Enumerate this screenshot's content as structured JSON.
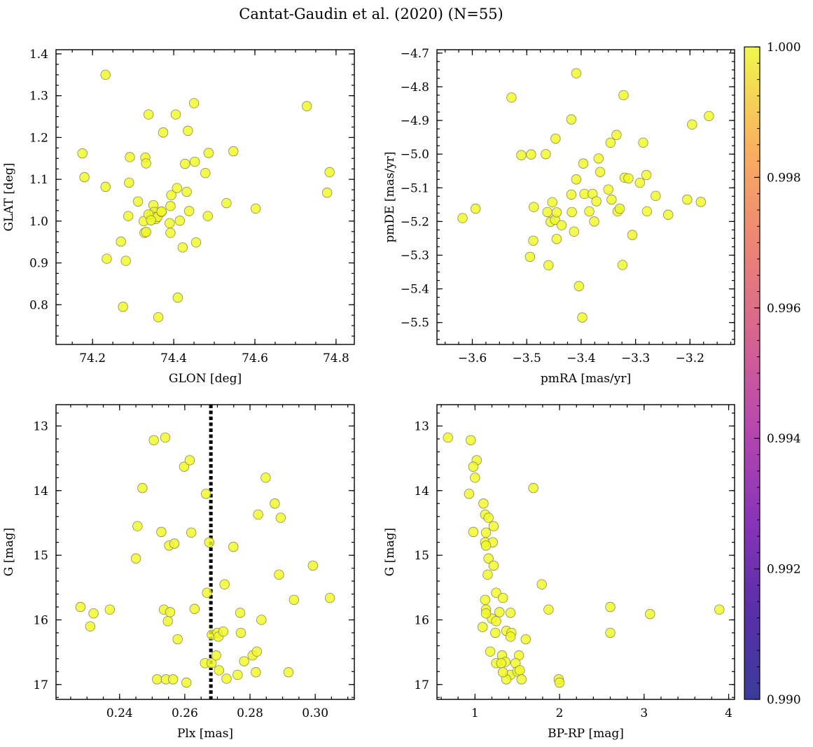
{
  "figure": {
    "title": "Cantat-Gaudin et al. (2020) (N=55)"
  },
  "colors": {
    "marker_fill": "#f0f921",
    "marker_edge": "#8a8a5a",
    "vline": "#000000",
    "colormap": "plasma"
  },
  "colorbar": {
    "range": [
      0.99,
      1.0
    ],
    "ticks": [
      "0.990",
      "0.992",
      "0.994",
      "0.996",
      "0.998",
      "1.000"
    ],
    "tick_values": [
      0.99,
      0.992,
      0.994,
      0.996,
      0.998,
      1.0
    ]
  },
  "chart_data": [
    {
      "type": "scatter",
      "xlabel": "GLON [deg]",
      "ylabel": "GLAT [deg]",
      "xlim": [
        74.11,
        74.845
      ],
      "ylim": [
        0.705,
        1.41
      ],
      "invert_y": false,
      "xticks": [
        74.2,
        74.4,
        74.6,
        74.8
      ],
      "xticklabels": [
        "74.2",
        "74.4",
        "74.6",
        "74.8"
      ],
      "yticks": [
        0.8,
        0.9,
        1.0,
        1.1,
        1.2,
        1.3,
        1.4
      ],
      "yticklabels": [
        "0.8",
        "0.9",
        "1.0",
        "1.1",
        "1.2",
        "1.3",
        "1.4"
      ],
      "x": [
        74.232,
        74.175,
        74.18,
        74.232,
        74.235,
        74.275,
        74.282,
        74.288,
        74.29,
        74.292,
        74.312,
        74.33,
        74.332,
        74.326,
        74.328,
        74.338,
        74.345,
        74.35,
        74.352,
        74.354,
        74.356,
        74.36,
        74.37,
        74.374,
        74.392,
        74.394,
        74.392,
        74.39,
        74.405,
        74.41,
        74.415,
        74.422,
        74.428,
        74.432,
        74.435,
        74.438,
        74.45,
        74.452,
        74.455,
        74.478,
        74.484,
        74.486,
        74.53,
        74.547,
        74.602,
        74.728,
        74.778,
        74.784,
        74.27,
        74.408,
        74.362,
        74.338,
        74.332,
        74.344,
        74.37
      ],
      "y": [
        1.35,
        1.162,
        1.105,
        1.082,
        0.91,
        0.795,
        0.905,
        1.012,
        1.092,
        1.153,
        1.047,
        1.152,
        1.138,
        1.0,
        0.972,
        1.255,
        1.015,
        1.038,
        1.022,
        1.01,
        1.005,
        1.01,
        1.022,
        1.212,
        1.036,
        1.062,
        0.972,
        0.995,
        1.255,
        0.817,
        1.001,
        0.937,
        1.137,
        1.07,
        1.216,
        1.024,
        1.282,
        1.142,
        0.949,
        1.115,
        1.012,
        1.163,
        1.043,
        1.167,
        1.03,
        1.275,
        1.068,
        1.117,
        0.951,
        1.079,
        0.77,
        1.016,
        0.974,
        1.002,
        1.023
      ]
    },
    {
      "type": "scatter",
      "xlabel": "pmRA [mas/yr]",
      "ylabel": "pmDE [mas/yr]",
      "xlim": [
        -3.665,
        -3.118
      ],
      "ylim": [
        -5.565,
        -4.69
      ],
      "invert_y": false,
      "xticks": [
        -3.6,
        -3.5,
        -3.4,
        -3.3,
        -3.2
      ],
      "xticklabels": [
        "−3.6",
        "−3.5",
        "−3.4",
        "−3.3",
        "−3.2"
      ],
      "yticks": [
        -5.5,
        -5.4,
        -5.3,
        -5.2,
        -5.1,
        -5.0,
        -4.9,
        -4.8,
        -4.7
      ],
      "yticklabels": [
        "−5.5",
        "−5.4",
        "−5.3",
        "−5.2",
        "−5.1",
        "−5.0",
        "−4.9",
        "−4.8",
        "−4.7"
      ],
      "x": [
        -3.618,
        -3.594,
        -3.528,
        -3.51,
        -3.494,
        -3.492,
        -3.488,
        -3.487,
        -3.465,
        -3.462,
        -3.46,
        -3.456,
        -3.453,
        -3.448,
        -3.447,
        -3.445,
        -3.445,
        -3.436,
        -3.418,
        -3.418,
        -3.417,
        -3.413,
        -3.409,
        -3.409,
        -3.404,
        -3.398,
        -3.396,
        -3.394,
        -3.385,
        -3.379,
        -3.376,
        -3.372,
        -3.368,
        -3.365,
        -3.35,
        -3.346,
        -3.344,
        -3.335,
        -3.333,
        -3.329,
        -3.324,
        -3.322,
        -3.32,
        -3.313,
        -3.306,
        -3.292,
        -3.286,
        -3.28,
        -3.279,
        -3.263,
        -3.24,
        -3.205,
        -3.196,
        -3.18,
        -3.165
      ],
      "y": [
        -5.19,
        -5.162,
        -4.832,
        -5.003,
        -5.305,
        -5.001,
        -5.257,
        -5.157,
        -5.0,
        -5.172,
        -5.33,
        -5.201,
        -5.143,
        -5.195,
        -4.954,
        -5.173,
        -5.252,
        -5.211,
        -4.897,
        -5.12,
        -5.172,
        -5.23,
        -4.76,
        -5.075,
        -5.392,
        -5.485,
        -5.028,
        -5.118,
        -5.17,
        -5.118,
        -5.2,
        -5.14,
        -5.013,
        -5.053,
        -5.105,
        -4.966,
        -5.135,
        -4.943,
        -5.17,
        -5.162,
        -5.329,
        -4.825,
        -5.07,
        -5.072,
        -5.24,
        -5.085,
        -4.966,
        -5.062,
        -5.17,
        -5.124,
        -5.18,
        -5.135,
        -4.912,
        -5.142,
        -4.887
      ]
    },
    {
      "type": "scatter",
      "xlabel": "Plx [mas]",
      "ylabel": "G [mag]",
      "xlim": [
        0.2205,
        0.312
      ],
      "ylim": [
        17.23,
        12.67
      ],
      "invert_y": true,
      "vline": {
        "x": 0.268,
        "style": "dotted"
      },
      "xticks": [
        0.24,
        0.26,
        0.28,
        0.3
      ],
      "xticklabels": [
        "0.24",
        "0.26",
        "0.28",
        "0.30"
      ],
      "yticks": [
        13,
        14,
        15,
        16,
        17
      ],
      "yticklabels": [
        "13",
        "14",
        "15",
        "16",
        "17"
      ],
      "x": [
        0.228,
        0.231,
        0.232,
        0.237,
        0.245,
        0.2455,
        0.247,
        0.2505,
        0.2515,
        0.2528,
        0.2536,
        0.254,
        0.2542,
        0.2548,
        0.2552,
        0.2555,
        0.2564,
        0.2568,
        0.2578,
        0.2598,
        0.2605,
        0.2615,
        0.262,
        0.263,
        0.2662,
        0.2665,
        0.2668,
        0.2675,
        0.2682,
        0.2683,
        0.2696,
        0.27,
        0.2703,
        0.2705,
        0.2718,
        0.2722,
        0.2728,
        0.2749,
        0.2762,
        0.277,
        0.2772,
        0.2782,
        0.2808,
        0.2818,
        0.2821,
        0.2825,
        0.2835,
        0.2848,
        0.2876,
        0.2889,
        0.2894,
        0.2918,
        0.2935,
        0.2993,
        0.3045
      ],
      "y": [
        15.8,
        16.1,
        15.9,
        15.84,
        15.05,
        14.55,
        13.96,
        13.22,
        16.92,
        14.64,
        15.84,
        13.18,
        16.92,
        16.02,
        14.85,
        15.88,
        16.92,
        14.82,
        16.3,
        13.63,
        16.97,
        13.53,
        14.65,
        15.83,
        16.67,
        14.05,
        15.58,
        14.8,
        16.67,
        16.23,
        16.55,
        16.2,
        16.26,
        16.78,
        16.18,
        15.45,
        16.91,
        14.87,
        16.85,
        15.89,
        16.2,
        16.64,
        16.55,
        16.81,
        16.49,
        14.37,
        16.0,
        13.8,
        14.2,
        15.3,
        14.42,
        16.81,
        15.69,
        15.16,
        15.66
      ]
    },
    {
      "type": "scatter",
      "xlabel": "BP-RP [mag]",
      "ylabel": "G [mag]",
      "xlim": [
        0.55,
        4.07
      ],
      "ylim": [
        17.23,
        12.67
      ],
      "invert_y": true,
      "xticks": [
        1,
        2,
        3,
        4
      ],
      "xticklabels": [
        "1",
        "2",
        "3",
        "4"
      ],
      "yticks": [
        13,
        14,
        15,
        16,
        17
      ],
      "yticklabels": [
        "13",
        "14",
        "15",
        "16",
        "17"
      ],
      "x": [
        0.68,
        0.95,
        1.02,
        0.98,
        1.0,
        0.93,
        1.1,
        1.12,
        1.16,
        1.22,
        0.98,
        1.13,
        1.12,
        1.21,
        1.13,
        1.16,
        1.22,
        1.15,
        1.12,
        1.13,
        1.2,
        1.25,
        1.25,
        1.29,
        1.33,
        1.37,
        1.43,
        1.09,
        1.18,
        1.24,
        1.32,
        1.36,
        1.42,
        1.52,
        1.25,
        1.31,
        1.37,
        1.48,
        1.5,
        1.33,
        1.53,
        1.55,
        1.42,
        1.6,
        1.99,
        2.0,
        1.69,
        1.79,
        1.87,
        2.6,
        2.6,
        3.07,
        3.89,
        1.42,
        1.13
      ],
      "y": [
        13.18,
        13.22,
        13.53,
        13.63,
        13.8,
        14.05,
        14.2,
        14.37,
        14.42,
        14.55,
        14.64,
        14.65,
        14.8,
        14.8,
        14.85,
        15.05,
        15.16,
        15.3,
        15.69,
        15.84,
        15.98,
        15.58,
        16.02,
        15.88,
        15.66,
        16.17,
        16.2,
        16.11,
        16.49,
        16.2,
        16.55,
        16.65,
        16.85,
        16.55,
        16.67,
        16.67,
        16.92,
        16.67,
        16.8,
        16.81,
        16.78,
        16.92,
        16.26,
        16.3,
        16.92,
        16.97,
        13.96,
        15.45,
        15.84,
        15.8,
        16.2,
        15.91,
        15.84,
        15.89,
        15.9
      ]
    }
  ]
}
